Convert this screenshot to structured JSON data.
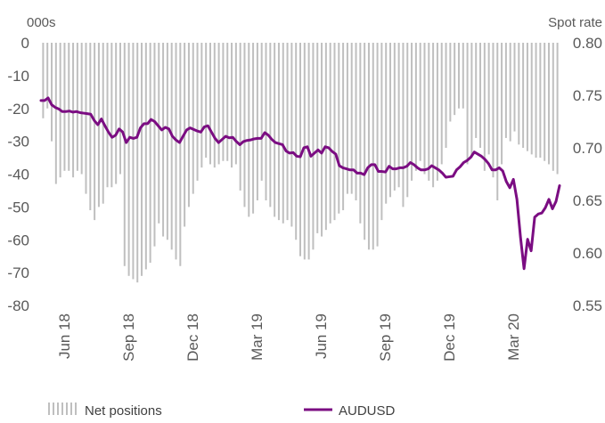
{
  "chart_data": {
    "type": "bar+line",
    "left_axis": {
      "unit_label": "000s",
      "range": [
        -80,
        0
      ],
      "ticks": [
        "0",
        "-10",
        "-20",
        "-30",
        "-40",
        "-50",
        "-60",
        "-70",
        "-80"
      ]
    },
    "right_axis": {
      "unit_label": "Spot rate",
      "range": [
        0.55,
        0.8
      ],
      "ticks": [
        "0.80",
        "0.75",
        "0.70",
        "0.65",
        "0.60",
        "0.55"
      ]
    },
    "x_tick_labels": [
      "Jun 18",
      "Sep 18",
      "Dec 18",
      "Mar 19",
      "Jun 19",
      "Sep 19",
      "Dec 19",
      "Mar 20"
    ],
    "grid": false,
    "legend_position": "bottom",
    "series": [
      {
        "name": "Net positions",
        "kind": "bar",
        "axis": "left",
        "color": "#bfbfbf",
        "values": [
          -23,
          -20,
          -30,
          -43,
          -41,
          -39,
          -39,
          -41,
          -39,
          -40,
          -46,
          -51,
          -54,
          -50,
          -49,
          -44,
          -44,
          -43,
          -40,
          -68,
          -71,
          -72,
          -73,
          -71,
          -69,
          -67,
          -62,
          -55,
          -59,
          -60,
          -63,
          -66,
          -68,
          -56,
          -50,
          -46,
          -42,
          -38,
          -35,
          -37,
          -38,
          -37,
          -36,
          -36,
          -38,
          -37,
          -45,
          -50,
          -53,
          -52,
          -48,
          -42,
          -48,
          -50,
          -53,
          -54,
          -55,
          -54,
          -56,
          -60,
          -65,
          -66,
          -66,
          -63,
          -58,
          -59,
          -57,
          -55,
          -54,
          -52,
          -51,
          -46,
          -46,
          -48,
          -55,
          -60,
          -63,
          -63,
          -62,
          -54,
          -49,
          -47,
          -45,
          -44,
          -50,
          -47,
          -42,
          -39,
          -36,
          -40,
          -42,
          -44,
          -42,
          -37,
          -32,
          -24,
          -22,
          -20,
          -20,
          -37,
          -35,
          -29,
          -32,
          -39,
          -34,
          -41,
          -48,
          -37,
          -29,
          -30,
          -27,
          -31,
          -32,
          -33,
          -34,
          -35,
          -35,
          -36,
          -37,
          -39,
          -40
        ]
      },
      {
        "name": "AUDUSD",
        "kind": "line",
        "axis": "right",
        "color": "#7b0d82",
        "values": [
          0.745,
          0.745,
          0.7475,
          0.741,
          0.7385,
          0.737,
          0.7345,
          0.7345,
          0.735,
          0.734,
          0.7345,
          0.7335,
          0.733,
          0.7325,
          0.732,
          0.726,
          0.722,
          0.7275,
          0.721,
          0.715,
          0.71,
          0.712,
          0.718,
          0.715,
          0.705,
          0.71,
          0.709,
          0.71,
          0.719,
          0.723,
          0.723,
          0.727,
          0.725,
          0.721,
          0.717,
          0.7195,
          0.718,
          0.711,
          0.7075,
          0.705,
          0.711,
          0.717,
          0.719,
          0.7175,
          0.716,
          0.715,
          0.72,
          0.721,
          0.715,
          0.709,
          0.705,
          0.708,
          0.711,
          0.7095,
          0.71,
          0.706,
          0.703,
          0.706,
          0.707,
          0.7075,
          0.7085,
          0.709,
          0.709,
          0.7145,
          0.712,
          0.708,
          0.705,
          0.704,
          0.703,
          0.697,
          0.695,
          0.6955,
          0.692,
          0.6915,
          0.7,
          0.701,
          0.692,
          0.695,
          0.698,
          0.695,
          0.701,
          0.7,
          0.6965,
          0.694,
          0.683,
          0.681,
          0.68,
          0.679,
          0.679,
          0.676,
          0.676,
          0.6745,
          0.681,
          0.684,
          0.684,
          0.6775,
          0.6775,
          0.677,
          0.6825,
          0.68,
          0.68,
          0.681,
          0.681,
          0.6825,
          0.686,
          0.684,
          0.681,
          0.679,
          0.679,
          0.68,
          0.683,
          0.681,
          0.679,
          0.676,
          0.672,
          0.6725,
          0.673,
          0.679,
          0.682,
          0.686,
          0.688,
          0.691,
          0.696,
          0.694,
          0.692,
          0.689,
          0.685,
          0.679,
          0.679,
          0.681,
          0.678,
          0.668,
          0.662,
          0.67,
          0.651,
          0.615,
          0.585,
          0.613,
          0.602,
          0.634,
          0.637,
          0.638,
          0.643,
          0.651,
          0.642,
          0.649,
          0.664
        ]
      }
    ]
  }
}
